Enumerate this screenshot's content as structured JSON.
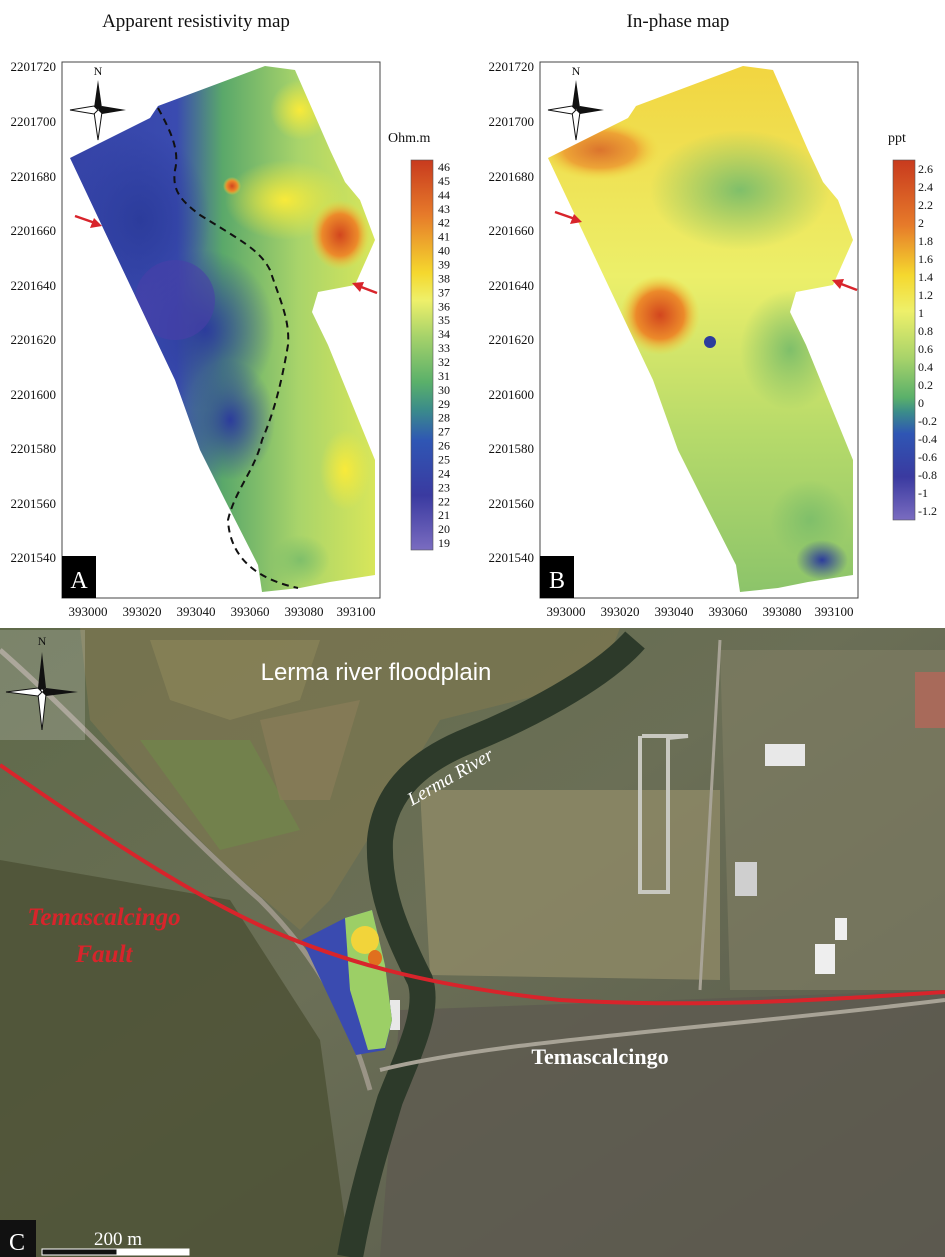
{
  "panel_a": {
    "title": "Apparent resistivity map",
    "label": "A",
    "unit": "Ohm.m",
    "y_ticks": [
      "2201720",
      "2201700",
      "2201680",
      "2201660",
      "2201640",
      "2201620",
      "2201600",
      "2201580",
      "2201560",
      "2201540"
    ],
    "x_ticks": [
      "393000",
      "393020",
      "393040",
      "393060",
      "393080",
      "393100"
    ],
    "colorbar_labels": [
      "46",
      "45",
      "44",
      "43",
      "42",
      "41",
      "40",
      "39",
      "38",
      "37",
      "36",
      "35",
      "34",
      "33",
      "32",
      "31",
      "30",
      "29",
      "28",
      "27",
      "26",
      "25",
      "24",
      "23",
      "22",
      "21",
      "20",
      "19"
    ],
    "north": "N"
  },
  "panel_b": {
    "title": "In-phase map",
    "label": "B",
    "unit": "ppt",
    "y_ticks": [
      "2201720",
      "2201700",
      "2201680",
      "2201660",
      "2201640",
      "2201620",
      "2201600",
      "2201580",
      "2201560",
      "2201540"
    ],
    "x_ticks": [
      "393000",
      "393020",
      "393040",
      "393060",
      "393080",
      "393100"
    ],
    "colorbar_labels": [
      "2.6",
      "2.4",
      "2.2",
      "2",
      "1.8",
      "1.6",
      "1.4",
      "1.2",
      "1",
      "0.8",
      "0.6",
      "0.4",
      "0.2",
      "0",
      "-0.2",
      "-0.4",
      "-0.6",
      "-0.8",
      "-1",
      "-1.2"
    ],
    "north": "N"
  },
  "panel_c": {
    "label": "C",
    "floodplain": "Lerma river floodplain",
    "river": "Lerma River",
    "fault_line1": "Temascalcingo",
    "fault_line2": "Fault",
    "town": "Temascalcingo",
    "scale": "200 m",
    "north": "N"
  },
  "colors": {
    "fault": "#d8242b",
    "arrow": "#d8242b"
  }
}
